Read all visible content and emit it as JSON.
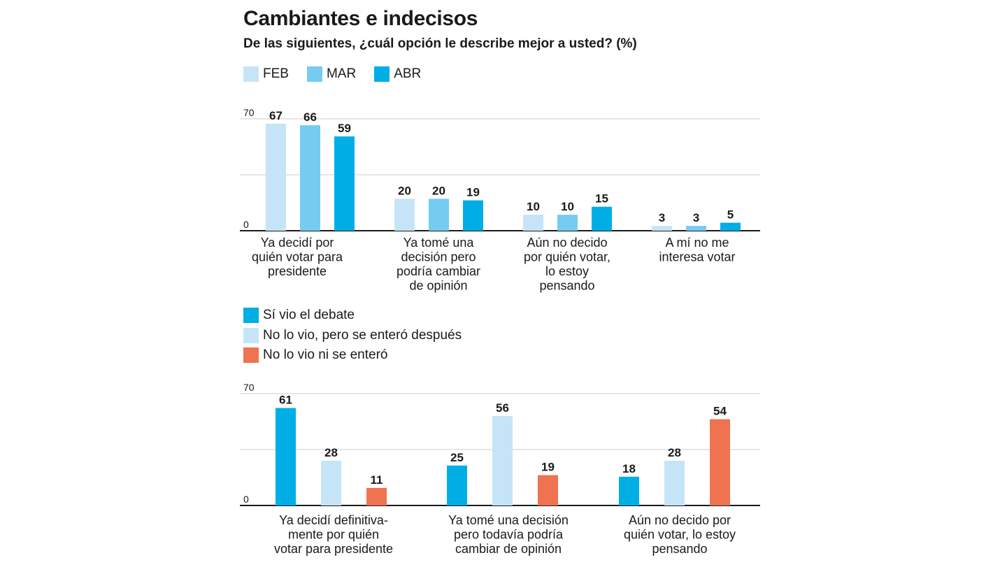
{
  "title": "Cambiantes e indecisos",
  "subtitle": "De las siguientes, ¿cuál opción le describe mejor a usted? (%)",
  "colors": {
    "feb": "#c6e4f8",
    "mar": "#76cbf1",
    "abr": "#00aee6",
    "vio": "#00aee6",
    "no_vio_se_entero": "#c6e4f8",
    "no_vio_ni_se_entero": "#ef7350",
    "gridline": "#cccccc",
    "axis": "#1a1a1a"
  },
  "chart_data": [
    {
      "type": "bar",
      "categories": [
        [
          "Ya decidí por",
          "quién votar para",
          "presidente"
        ],
        [
          "Ya tomé una",
          "decisión pero",
          "podría cambiar",
          "de opinión"
        ],
        [
          "Aún no decido",
          "por quién votar,",
          "lo estoy",
          "pensando"
        ],
        [
          "A mí no me",
          "interesa votar"
        ]
      ],
      "series": [
        {
          "name": "FEB",
          "color_key": "feb",
          "values": [
            67,
            20,
            10,
            3
          ]
        },
        {
          "name": "MAR",
          "color_key": "mar",
          "values": [
            66,
            20,
            10,
            3
          ]
        },
        {
          "name": "ABR",
          "color_key": "abr",
          "values": [
            59,
            19,
            15,
            5
          ]
        }
      ],
      "ylim": [
        0,
        70
      ],
      "yticks": [
        0,
        70
      ],
      "grid": true,
      "legend": "top-left"
    },
    {
      "type": "bar",
      "categories": [
        [
          "Ya decidí definitiva-",
          "mente por quién",
          "votar para presidente"
        ],
        [
          "Ya tomé una decisión",
          "pero todavía podría",
          "cambiar de opinión"
        ],
        [
          "Aún no decido por",
          "quién votar, lo estoy",
          "pensando"
        ]
      ],
      "series": [
        {
          "name": "Sí vio el debate",
          "color_key": "vio",
          "values": [
            61,
            25,
            18
          ]
        },
        {
          "name": "No lo vio, pero se enteró después",
          "color_key": "no_vio_se_entero",
          "values": [
            28,
            56,
            28
          ]
        },
        {
          "name": "No lo vio ni se enteró",
          "color_key": "no_vio_ni_se_entero",
          "values": [
            11,
            19,
            54
          ]
        }
      ],
      "ylim": [
        0,
        70
      ],
      "yticks": [
        0,
        70
      ],
      "grid": true,
      "legend": "top-left"
    }
  ]
}
